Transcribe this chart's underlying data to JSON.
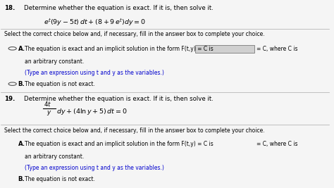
{
  "bg_color": "#f5f5f5",
  "text_color": "#000000",
  "blue_color": "#0000cd",
  "q18_number": "18.",
  "q18_header": "Determine whether the equation is exact. If it is, then solve it.",
  "q18_select": "Select the correct choice below and, if necessary, fill in the answer box to complete your choice.",
  "q18_A_main": "The equation is exact and an implicit solution in the form F(t,y) = C is",
  "q18_A_end": "= C, where C is",
  "q18_A_cont": "an arbitrary constant.",
  "q18_A_hint": "(Type an expression using t and y as the variables.)",
  "q18_B": "The equation is not exact.",
  "q19_number": "19.",
  "q19_header": "Determine whether the equation is exact. If it is, then solve it.",
  "q19_select": "Select the correct choice below and, if necessary, fill in the answer box to complete your choice.",
  "q19_A_main": "The equation is exact and an implicit solution in the form F(t,y) = C is",
  "q19_A_end": "= C, where C is",
  "q19_A_cont": "an arbitrary constant.",
  "q19_A_hint": "(Type an expression using t and y as the variables.)",
  "q19_B": "The equation is not exact."
}
